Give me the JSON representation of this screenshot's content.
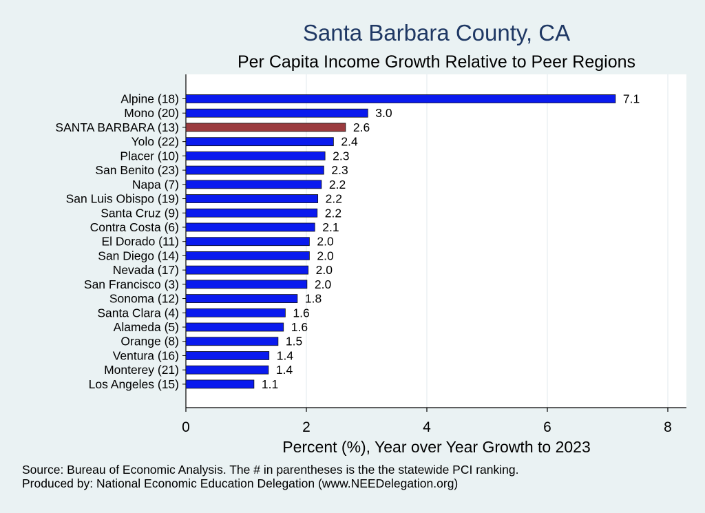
{
  "chart_data": {
    "type": "bar",
    "orientation": "horizontal",
    "title": "Santa Barbara County, CA",
    "subtitle": "Per Capita Income Growth Relative to Peer Regions",
    "xlabel": "Percent (%), Year over Year Growth to 2023",
    "ylabel": "",
    "xlim": [
      0,
      8
    ],
    "xticks": [
      "0",
      "2",
      "4",
      "6",
      "8"
    ],
    "xtick_values": [
      0,
      2,
      4,
      6,
      8
    ],
    "categories": [
      "Alpine (18)",
      "Mono (20)",
      "SANTA BARBARA (13)",
      "Yolo (22)",
      "Placer (10)",
      "San Benito (23)",
      "Napa  (7)",
      "San Luis Obispo (19)",
      "Santa Cruz  (9)",
      "Contra Costa  (6)",
      "El Dorado (11)",
      "San Diego (14)",
      "Nevada (17)",
      "San Francisco  (3)",
      "Sonoma (12)",
      "Santa Clara  (4)",
      "Alameda  (5)",
      "Orange  (8)",
      "Ventura (16)",
      "Monterey (21)",
      "Los Angeles (15)"
    ],
    "values": [
      7.13,
      3.02,
      2.65,
      2.45,
      2.31,
      2.29,
      2.25,
      2.19,
      2.18,
      2.14,
      2.05,
      2.05,
      2.03,
      2.01,
      1.85,
      1.65,
      1.62,
      1.53,
      1.38,
      1.37,
      1.13
    ],
    "value_labels": [
      "7.1",
      "3.0",
      "2.6",
      "2.4",
      "2.3",
      "2.3",
      "2.2",
      "2.2",
      "2.2",
      "2.1",
      "2.0",
      "2.0",
      "2.0",
      "2.0",
      "1.8",
      "1.6",
      "1.6",
      "1.5",
      "1.4",
      "1.4",
      "1.1"
    ],
    "highlight_index": 2,
    "colors": {
      "bar": "#0a1aee",
      "highlight": "#9b3b3f",
      "plot_bg": "#ffffff",
      "outer_bg": "#eaf2f3",
      "title": "#1f3864"
    },
    "grid": true,
    "legend": "none"
  },
  "notes": {
    "source": "Source: Bureau of Economic Analysis. The # in parentheses is the the statewide PCI ranking.",
    "produced": "Produced by: National Economic Education Delegation (www.NEEDelegation.org)"
  }
}
